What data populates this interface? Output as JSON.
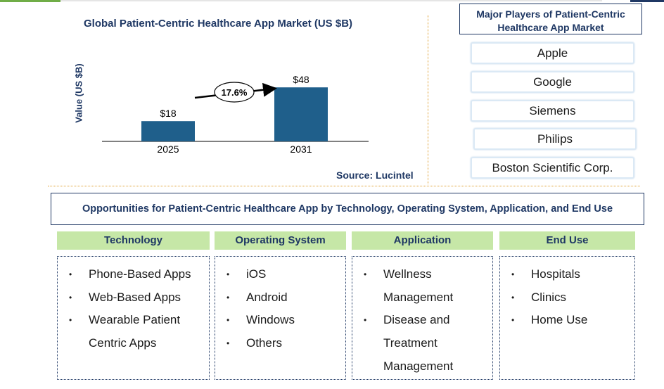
{
  "chart_data": {
    "type": "bar",
    "title": "Global Patient-Centric Healthcare App Market (US $B)",
    "ylabel": "Value (US $B)",
    "xlabel": "",
    "categories": [
      "2025",
      "2031"
    ],
    "values": [
      18,
      48
    ],
    "value_labels": [
      "$18",
      "$48"
    ],
    "cagr_label": "17.6%",
    "source": "Source: Lucintel",
    "bar_color": "#1f5f8b"
  },
  "players": {
    "title": "Major Players of Patient-Centric Healthcare App Market",
    "items": [
      "Apple",
      "Google",
      "Siemens",
      "Philips",
      "Boston Scientific Corp."
    ]
  },
  "opportunities": {
    "title": "Opportunities for Patient-Centric Healthcare App by Technology, Operating System, Application, and End Use",
    "columns": [
      {
        "header": "Technology",
        "items": [
          "Phone-Based Apps",
          "Web-Based Apps",
          "Wearable Patient Centric Apps"
        ]
      },
      {
        "header": "Operating System",
        "items": [
          "iOS",
          "Android",
          "Windows",
          "Others"
        ]
      },
      {
        "header": "Application",
        "items": [
          "Wellness Management",
          "Disease and Treatment Management"
        ]
      },
      {
        "header": "End Use",
        "items": [
          "Hospitals",
          "Clinics",
          "Home Use"
        ]
      }
    ]
  },
  "colors": {
    "navy": "#1f3864",
    "bar": "#1f5f8b",
    "header_green": "#c6e7a7",
    "accent_green": "#70ad47",
    "separator_orange": "#e0a030"
  }
}
